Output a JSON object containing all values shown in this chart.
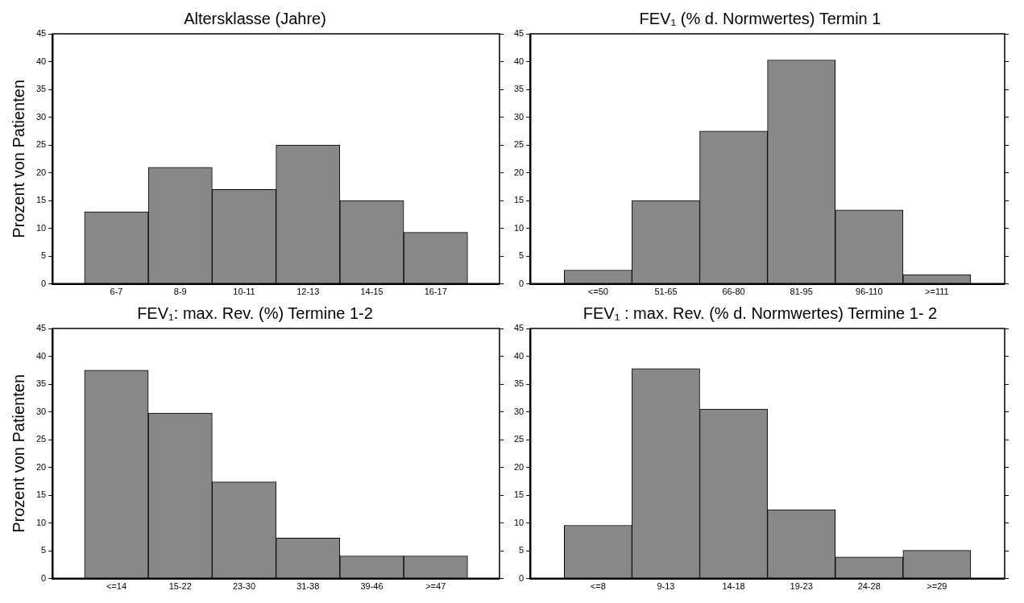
{
  "chart_data": [
    {
      "type": "bar",
      "title": "Altersklasse (Jahre)",
      "ylabel": "Prozent von Patienten",
      "categories": [
        "6-7",
        "8-9",
        "10-11",
        "12-13",
        "14-15",
        "16-17"
      ],
      "values": [
        13,
        21,
        17,
        25,
        15,
        9.3
      ],
      "color": "#888888",
      "ylim": [
        0,
        45
      ],
      "yticks": [
        0,
        5,
        10,
        15,
        20,
        25,
        30,
        35,
        40,
        45
      ]
    },
    {
      "type": "bar",
      "title": "FEV₁ (% d. Normwertes) Termin 1",
      "categories": [
        "<=50",
        "51-65",
        "66-80",
        "81-95",
        "96-110",
        ">=111"
      ],
      "values": [
        2.5,
        15,
        27.5,
        40.3,
        13.3,
        1.7
      ],
      "color": "#888888",
      "ylim": [
        0,
        45
      ],
      "yticks": [
        0,
        5,
        10,
        15,
        20,
        25,
        30,
        35,
        40,
        45
      ]
    },
    {
      "type": "bar",
      "title": "FEV₁: max. Rev. (%) Termine 1-2",
      "ylabel": "Prozent von Patienten",
      "categories": [
        "<=14",
        "15-22",
        "23-30",
        "31-38",
        "39-46",
        ">=47"
      ],
      "values": [
        37.5,
        29.8,
        17.4,
        7.3,
        4.1,
        4.1
      ],
      "color": "#888888",
      "ylim": [
        0,
        45
      ],
      "yticks": [
        0,
        5,
        10,
        15,
        20,
        25,
        30,
        35,
        40,
        45
      ]
    },
    {
      "type": "bar",
      "title": "FEV₁ : max. Rev. (% d. Normwertes) Termine 1- 2",
      "categories": [
        "<=8",
        "9-13",
        "14-18",
        "19-23",
        "24-28",
        ">=29"
      ],
      "values": [
        9.6,
        37.8,
        30.5,
        12.4,
        3.9,
        5.1
      ],
      "color": "#888888",
      "ylim": [
        0,
        45
      ],
      "yticks": [
        0,
        5,
        10,
        15,
        20,
        25,
        30,
        35,
        40,
        45
      ]
    }
  ]
}
